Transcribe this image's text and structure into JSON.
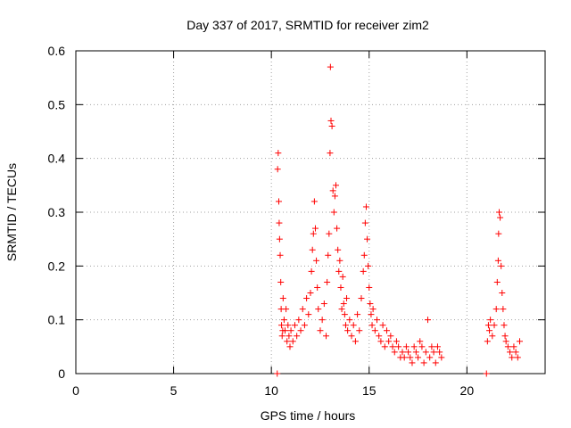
{
  "chart_data": {
    "type": "scatter",
    "title": "Day 337 of 2017, SRMTID for receiver zim2",
    "xlabel": "GPS time / hours",
    "ylabel": "SRMTID / TECUs",
    "xlim": [
      0,
      24
    ],
    "ylim": [
      0,
      0.6
    ],
    "xticks": [
      0,
      5,
      10,
      15,
      20
    ],
    "xtick_labels": [
      "0",
      "5",
      "10",
      "15",
      "20"
    ],
    "yticks": [
      0,
      0.1,
      0.2,
      0.3,
      0.4,
      0.5,
      0.6
    ],
    "ytick_labels": [
      "0",
      "0.1",
      "0.2",
      "0.3",
      "0.4",
      "0.5",
      "0.6"
    ],
    "grid": true,
    "marker": "+",
    "color": "#ff0000",
    "series": [
      {
        "name": "SRMTID",
        "x": [
          10.3,
          10.32,
          10.35,
          10.38,
          10.4,
          10.42,
          10.45,
          10.48,
          10.5,
          10.52,
          10.55,
          10.58,
          10.6,
          10.65,
          10.7,
          10.75,
          10.8,
          10.85,
          10.9,
          10.95,
          11.0,
          11.1,
          11.2,
          11.3,
          11.4,
          11.5,
          11.6,
          11.7,
          11.8,
          11.9,
          12.0,
          12.05,
          12.1,
          12.15,
          12.2,
          12.25,
          12.3,
          12.35,
          12.4,
          12.5,
          12.6,
          12.7,
          12.8,
          12.85,
          12.9,
          12.95,
          13.0,
          13.02,
          13.05,
          13.1,
          13.15,
          13.2,
          13.25,
          13.3,
          13.35,
          13.4,
          13.45,
          13.5,
          13.55,
          13.6,
          13.65,
          13.7,
          13.75,
          13.8,
          13.85,
          13.9,
          14.0,
          14.1,
          14.2,
          14.3,
          14.4,
          14.5,
          14.6,
          14.7,
          14.75,
          14.8,
          14.85,
          14.9,
          14.95,
          15.0,
          15.05,
          15.1,
          15.15,
          15.2,
          15.3,
          15.4,
          15.5,
          15.6,
          15.7,
          15.8,
          15.9,
          16.0,
          16.1,
          16.2,
          16.3,
          16.4,
          16.5,
          16.6,
          16.7,
          16.8,
          16.9,
          17.0,
          17.1,
          17.2,
          17.3,
          17.4,
          17.5,
          17.6,
          17.7,
          17.8,
          17.9,
          18.0,
          18.1,
          18.2,
          18.3,
          18.4,
          18.5,
          18.6,
          18.7,
          21.0,
          21.05,
          21.1,
          21.15,
          21.2,
          21.3,
          21.4,
          21.5,
          21.55,
          21.6,
          21.62,
          21.65,
          21.7,
          21.75,
          21.8,
          21.85,
          21.9,
          21.95,
          22.0,
          22.1,
          22.2,
          22.3,
          22.4,
          22.5,
          22.6,
          22.7
        ],
        "y": [
          0.0,
          0.38,
          0.41,
          0.32,
          0.28,
          0.25,
          0.22,
          0.17,
          0.12,
          0.09,
          0.07,
          0.08,
          0.14,
          0.1,
          0.08,
          0.12,
          0.06,
          0.09,
          0.07,
          0.05,
          0.08,
          0.06,
          0.09,
          0.07,
          0.1,
          0.08,
          0.12,
          0.09,
          0.14,
          0.11,
          0.15,
          0.19,
          0.23,
          0.26,
          0.32,
          0.27,
          0.21,
          0.16,
          0.12,
          0.08,
          0.1,
          0.13,
          0.07,
          0.17,
          0.22,
          0.26,
          0.41,
          0.57,
          0.47,
          0.46,
          0.34,
          0.3,
          0.33,
          0.35,
          0.27,
          0.23,
          0.19,
          0.21,
          0.16,
          0.12,
          0.18,
          0.13,
          0.11,
          0.09,
          0.14,
          0.08,
          0.1,
          0.07,
          0.09,
          0.06,
          0.11,
          0.08,
          0.14,
          0.19,
          0.22,
          0.28,
          0.31,
          0.25,
          0.2,
          0.16,
          0.13,
          0.11,
          0.09,
          0.12,
          0.08,
          0.1,
          0.07,
          0.06,
          0.09,
          0.05,
          0.08,
          0.06,
          0.07,
          0.05,
          0.04,
          0.06,
          0.05,
          0.03,
          0.04,
          0.03,
          0.05,
          0.04,
          0.03,
          0.02,
          0.05,
          0.04,
          0.03,
          0.06,
          0.05,
          0.02,
          0.04,
          0.1,
          0.03,
          0.05,
          0.04,
          0.02,
          0.05,
          0.04,
          0.03,
          0.0,
          0.06,
          0.09,
          0.08,
          0.1,
          0.07,
          0.09,
          0.12,
          0.17,
          0.21,
          0.26,
          0.3,
          0.29,
          0.2,
          0.15,
          0.12,
          0.09,
          0.07,
          0.06,
          0.05,
          0.04,
          0.03,
          0.05,
          0.04,
          0.03,
          0.06
        ]
      }
    ]
  }
}
